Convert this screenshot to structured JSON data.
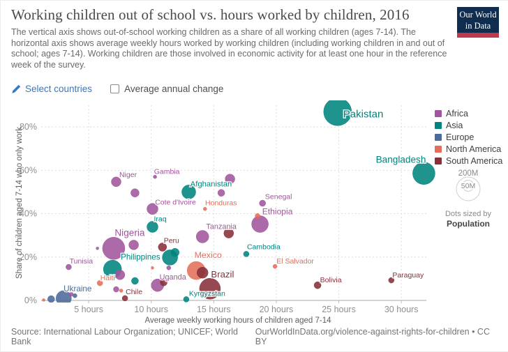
{
  "header": {
    "title": "Working children out of school vs. hours worked by children, 2016",
    "subtitle": "The vertical axis shows out-of-school working children as a share of all working children (ages 7-14). The horizontal axis shows average weekly hours worked by working children (including working children in and out of school; ages 7-14). Working children are those involved in economic activity for at least one hour in the reference week of the survey.",
    "logo": {
      "line1": "Our World",
      "line2": "in Data",
      "bg_color": "#102d50",
      "accent_color": "#c0394b"
    }
  },
  "controls": {
    "select_countries_label": "Select countries",
    "average_annual_change_label": "Average annual change",
    "checkbox_checked": false,
    "link_color": "#3a77bf"
  },
  "legend": {
    "size": {
      "big_label": "200M",
      "small_label": "50M",
      "caption_line1": "Dots sized by",
      "caption_line2": "Population"
    }
  },
  "chart_data": {
    "type": "scatter",
    "title": "Working children out of school vs. hours worked by children, 2016",
    "xlabel": "Average weekly working hours of children aged 7-14",
    "ylabel": "Share of children aged 7-14 who only work",
    "xlim": [
      1.2,
      32
    ],
    "ylim": [
      0,
      90
    ],
    "x_ticks": [
      5,
      10,
      15,
      20,
      25,
      30
    ],
    "x_tick_suffix": " hours",
    "y_ticks": [
      0,
      20,
      40,
      60,
      80
    ],
    "y_tick_suffix": "%",
    "grid": "dashed",
    "legend_position": "right",
    "series": [
      {
        "name": "Africa",
        "color": "#a2559c",
        "points": [
          {
            "name": "Niger",
            "x": 7.2,
            "y": 54.7,
            "r": 7,
            "label_dx": 17,
            "label_dy": -7
          },
          {
            "name": "Gambia",
            "x": 10.3,
            "y": 57.0,
            "r": 2.5,
            "label_dx": 17,
            "label_dy": -4
          },
          {
            "name": "Cote d'Ivoire",
            "x": 10.1,
            "y": 42.2,
            "r": 8,
            "label_dx": 33,
            "label_dy": -6
          },
          {
            "name": "Senegal",
            "x": 18.9,
            "y": 44.8,
            "r": 4.5,
            "label_dx": 23,
            "label_dy": -6
          },
          {
            "name": "Ethiopia",
            "x": 18.7,
            "y": 35.2,
            "r": 12,
            "label_dx": 25,
            "label_dy": -14
          },
          {
            "name": "Tanzania",
            "x": 14.1,
            "y": 29.4,
            "r": 9,
            "label_dx": 27,
            "label_dy": -11
          },
          {
            "name": "Nigeria",
            "x": 7.0,
            "y": 24.0,
            "r": 16,
            "label_dx": 23,
            "label_dy": -18
          },
          {
            "name": "Tunisia",
            "x": 3.4,
            "y": 15.4,
            "r": 4,
            "label_dx": 18,
            "label_dy": -5
          },
          {
            "name": "Uganda",
            "x": 10.5,
            "y": 7.0,
            "r": 9,
            "label_dx": 22,
            "label_dy": -8
          },
          {
            "name": "",
            "x": 8.7,
            "y": 49.6,
            "r": 6
          },
          {
            "name": "",
            "x": 15.6,
            "y": 49.6,
            "r": 5
          },
          {
            "name": "",
            "x": 16.3,
            "y": 56.0,
            "r": 7
          },
          {
            "name": "",
            "x": 8.6,
            "y": 25.6,
            "r": 7
          },
          {
            "name": "",
            "x": 5.7,
            "y": 24.0,
            "r": 2
          },
          {
            "name": "",
            "x": 7.2,
            "y": 5.1,
            "r": 4
          },
          {
            "name": "",
            "x": 7.5,
            "y": 11.8,
            "r": 7
          },
          {
            "name": "",
            "x": 11.4,
            "y": 15.0,
            "r": 3
          },
          {
            "name": "",
            "x": 3.6,
            "y": 2.9,
            "r": 3
          }
        ]
      },
      {
        "name": "Asia",
        "color": "#00847e",
        "points": [
          {
            "name": "Pakistan",
            "x": 24.9,
            "y": 87.0,
            "r": 20,
            "label_dx": 8,
            "label_dy": 8,
            "anchor": "start"
          },
          {
            "name": "Bangladesh",
            "x": 31.8,
            "y": 58.6,
            "r": 16,
            "label_dx": 3,
            "label_dy": -15,
            "anchor": "end"
          },
          {
            "name": "Afghanistan",
            "x": 13.0,
            "y": 50.0,
            "r": 10,
            "label_dx": 32,
            "label_dy": -8
          },
          {
            "name": "Iraq",
            "x": 10.1,
            "y": 33.9,
            "r": 8,
            "label_dx": 11,
            "label_dy": -8
          },
          {
            "name": "Philippines",
            "x": 11.5,
            "y": 19.8,
            "r": 11,
            "label_dx": -14,
            "label_dy": 3,
            "anchor": "end"
          },
          {
            "name": "Cambodia",
            "x": 17.6,
            "y": 21.4,
            "r": 4,
            "label_dx": 25,
            "label_dy": -7
          },
          {
            "name": "Kyrgyzstan",
            "x": 12.8,
            "y": 0.5,
            "r": 4,
            "label_dx": 30,
            "label_dy": -5
          },
          {
            "name": "",
            "x": 6.9,
            "y": 14.4,
            "r": 13
          },
          {
            "name": "",
            "x": 11.9,
            "y": 22.1,
            "r": 6
          },
          {
            "name": "",
            "x": 8.7,
            "y": 9.0,
            "r": 5
          }
        ]
      },
      {
        "name": "Europe",
        "color": "#4c6a9c",
        "points": [
          {
            "name": "Ukraine",
            "x": 3.0,
            "y": 1.0,
            "r": 11,
            "label_dx": 20,
            "label_dy": -10
          },
          {
            "name": "",
            "x": 2.0,
            "y": 0.6,
            "r": 5
          },
          {
            "name": "",
            "x": 3.9,
            "y": 2.2,
            "r": 3
          }
        ]
      },
      {
        "name": "North America",
        "color": "#e56e5a",
        "points": [
          {
            "name": "Honduras",
            "x": 14.3,
            "y": 42.2,
            "r": 2.5,
            "label_dx": 23,
            "label_dy": -5
          },
          {
            "name": "Haiti",
            "x": 5.9,
            "y": 8.0,
            "r": 4,
            "label_dx": 11,
            "label_dy": -4
          },
          {
            "name": "Mexico",
            "x": 13.6,
            "y": 13.8,
            "r": 13,
            "label_dx": 17,
            "label_dy": -18
          },
          {
            "name": "El Salvador",
            "x": 19.9,
            "y": 15.7,
            "r": 3,
            "label_dx": 29,
            "label_dy": -4
          },
          {
            "name": "",
            "x": 18.5,
            "y": 39.0,
            "r": 3.5
          },
          {
            "name": "",
            "x": 7.6,
            "y": 4.5,
            "r": 2.5
          },
          {
            "name": "",
            "x": 10.1,
            "y": 15.0,
            "r": 2
          },
          {
            "name": "",
            "x": 1.4,
            "y": 0.2,
            "r": 2
          }
        ]
      },
      {
        "name": "South America",
        "color": "#883039",
        "points": [
          {
            "name": "Peru",
            "x": 10.9,
            "y": 24.6,
            "r": 6,
            "label_dx": 13,
            "label_dy": -6
          },
          {
            "name": "Brazil",
            "x": 14.7,
            "y": 5.4,
            "r": 15,
            "label_dx": 18,
            "label_dy": -16
          },
          {
            "name": "Chile",
            "x": 7.9,
            "y": 1.0,
            "r": 4,
            "label_dx": 13,
            "label_dy": -6
          },
          {
            "name": "Bolivia",
            "x": 23.3,
            "y": 7.0,
            "r": 5,
            "label_dx": 19,
            "label_dy": -4
          },
          {
            "name": "Paraguay",
            "x": 29.2,
            "y": 9.3,
            "r": 4,
            "label_dx": 24,
            "label_dy": -4
          },
          {
            "name": "",
            "x": 16.2,
            "y": 31.0,
            "r": 7
          },
          {
            "name": "",
            "x": 14.1,
            "y": 12.8,
            "r": 8
          },
          {
            "name": "",
            "x": 11.0,
            "y": 8.3,
            "r": 5
          }
        ]
      }
    ]
  },
  "footer": {
    "source": "Source: International Labour Organization; UNICEF; World Bank",
    "attribution": "OurWorldInData.org/violence-against-rights-for-children • CC BY"
  }
}
